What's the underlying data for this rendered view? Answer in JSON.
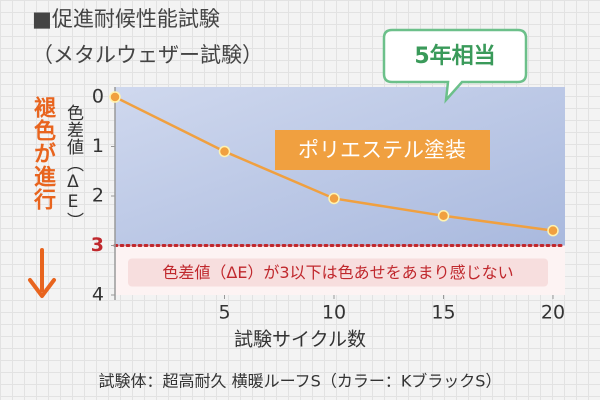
{
  "chart_data": {
    "type": "line",
    "title": "■促進耐候性能試験",
    "subtitle": "（メタルウェザー試験）",
    "callout": "5年相当",
    "direction_label": "褪色が進行",
    "y_label": "色差値（ΔE）",
    "x_label": "試験サイクル数",
    "footnote": "試験体：超高耐久 横暖ルーフS（カラー：KブラックS）",
    "x": [
      0,
      5,
      10,
      15,
      20
    ],
    "series": [
      {
        "name": "ポリエステル塗装",
        "color": "#f0a040",
        "values": [
          0,
          1.1,
          2.05,
          2.4,
          2.7
        ]
      }
    ],
    "xlim": [
      0,
      20
    ],
    "xticks": [
      5,
      10,
      15,
      20
    ],
    "ylim": [
      0,
      4
    ],
    "yticks": [
      0,
      1,
      2,
      3,
      4
    ],
    "y_reversed": true,
    "threshold": {
      "value": 3,
      "label": "色差値（ΔE）が3以下は色あせをあまり感じない",
      "color": "#c0282d"
    }
  }
}
